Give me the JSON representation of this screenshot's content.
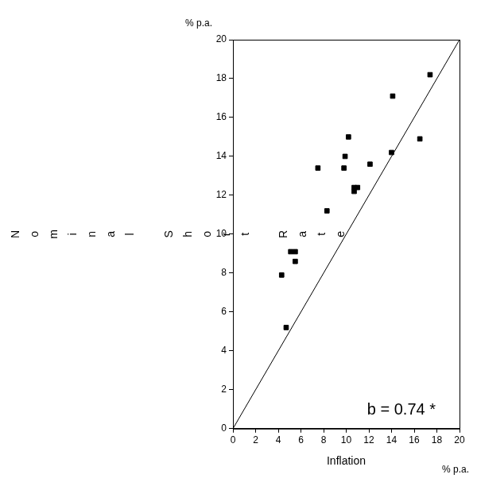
{
  "chart_data": {
    "type": "scatter",
    "x_label": "Inflation",
    "y_label": "Nominal Short Rate",
    "x_unit": "% p.a.",
    "y_unit": "% p.a.",
    "annotations": [
      "b = 0.74 *"
    ],
    "x": [
      4.3,
      4.7,
      5.1,
      5.5,
      5.5,
      7.5,
      8.3,
      9.8,
      9.9,
      10.2,
      10.7,
      10.7,
      11.0,
      12.1,
      14.0,
      14.1,
      16.5,
      17.4
    ],
    "values": [
      7.9,
      5.2,
      9.1,
      9.1,
      8.6,
      13.4,
      11.2,
      13.4,
      14.0,
      15.0,
      12.4,
      12.2,
      12.4,
      13.6,
      14.2,
      17.1,
      14.9,
      18.2
    ],
    "color": "#000000",
    "marker": "square",
    "reference_line": {
      "x": [
        0,
        20
      ],
      "y": [
        0,
        20
      ],
      "color": "#000000",
      "line_style": "solid"
    },
    "xlim": [
      0,
      20
    ],
    "ylim": [
      0,
      20
    ],
    "xticks": [
      0,
      2,
      4,
      6,
      8,
      10,
      12,
      14,
      16,
      18,
      20
    ],
    "yticks": [
      0,
      2,
      4,
      6,
      8,
      10,
      12,
      14,
      16,
      18,
      20
    ],
    "grid": false,
    "legend": false
  }
}
